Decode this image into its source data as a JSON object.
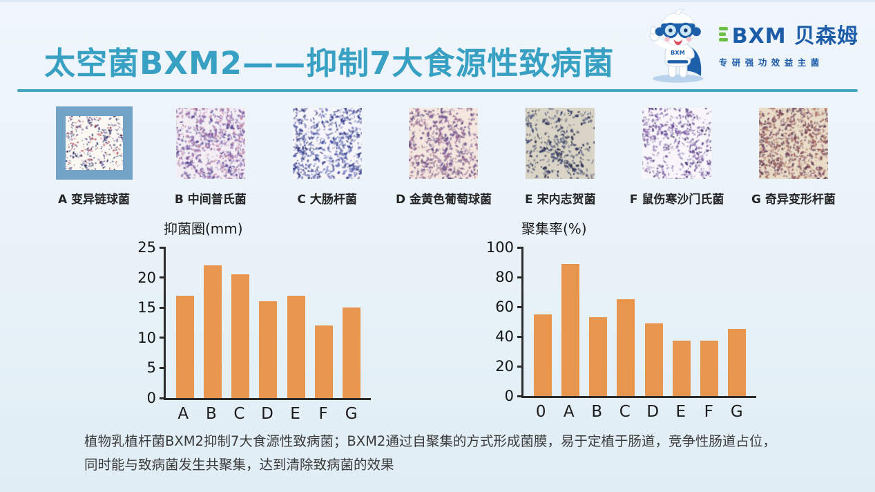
{
  "title": "太空菌BXM2——抑制7大食源性致病菌",
  "logo": {
    "brand": "BXM 贝森姆",
    "tagline": "专研强功效益主菌",
    "brand_color": "#1d5ca9",
    "accent_green": "#6cbf45"
  },
  "specimens": [
    {
      "label": "A 变异链球菌",
      "highlighted": true,
      "bg": "#faf8f3",
      "colors": [
        "#34386f",
        "#b04050",
        "#6a5a9e",
        "#2b2e5e"
      ],
      "density": 330
    },
    {
      "label": "B 中间普氏菌",
      "highlighted": false,
      "bg": "#f3edf4",
      "colors": [
        "#7a5aa0",
        "#9b7ab8",
        "#54468f",
        "#c088a5"
      ],
      "density": 720
    },
    {
      "label": "C 大肠杆菌",
      "highlighted": false,
      "bg": "#f6f5f9",
      "colors": [
        "#4a55a8",
        "#39418f",
        "#7a82c0",
        "#2e3575"
      ],
      "density": 640
    },
    {
      "label": "D 金黄色葡萄球菌",
      "highlighted": false,
      "bg": "#f4e7df",
      "colors": [
        "#7a5a98",
        "#93658e",
        "#5c4a80",
        "#a47a95"
      ],
      "density": 660
    },
    {
      "label": "E 宋内志贺菌",
      "highlighted": false,
      "bg": "#d9d4c5",
      "colors": [
        "#2e3560",
        "#474f80",
        "#23284a"
      ],
      "density": 380
    },
    {
      "label": "F 鼠伤寒沙门氏菌",
      "highlighted": false,
      "bg": "#f8f6fa",
      "colors": [
        "#6a4a98",
        "#8866ab",
        "#44356e",
        "#9a85b8"
      ],
      "density": 520
    },
    {
      "label": "G 奇异变形杆菌",
      "highlighted": false,
      "bg": "#e9dcc8",
      "colors": [
        "#9a5a58",
        "#7a4a68",
        "#b07a6a",
        "#5e3c56"
      ],
      "density": 760
    }
  ],
  "chart_data": [
    {
      "type": "bar",
      "title": "抑菌圈(mm)",
      "categories": [
        "A",
        "B",
        "C",
        "D",
        "E",
        "F",
        "G"
      ],
      "values": [
        17,
        22,
        20.5,
        16,
        17,
        12,
        15
      ],
      "xlabel": "",
      "ylabel": "抑菌圈(mm)",
      "ylim": [
        0,
        25
      ],
      "yticks": [
        0,
        5,
        10,
        15,
        20,
        25
      ],
      "grid": false,
      "bar_color": "#e8954d"
    },
    {
      "type": "bar",
      "title": "聚集率(%)",
      "categories": [
        "0",
        "A",
        "B",
        "C",
        "D",
        "E",
        "F",
        "G"
      ],
      "values": [
        55,
        89,
        53,
        65,
        49,
        37,
        37,
        45
      ],
      "xlabel": "",
      "ylabel": "聚集率(%)",
      "ylim": [
        0,
        100
      ],
      "yticks": [
        0,
        20,
        40,
        60,
        80,
        100
      ],
      "grid": false,
      "bar_color": "#e8954d"
    }
  ],
  "footer": {
    "line1": "植物乳植杆菌BXM2抑制7大食源性致病菌；BXM2通过自聚集的方式形成菌膜，易于定植于肠道，竞争性肠道占位，",
    "line2": "同时能与致病菌发生共聚集，达到清除致病菌的效果"
  },
  "colors": {
    "title_teal": "#38a0c3",
    "rule_teal": "#45a4c2",
    "bar_orange": "#e8954d",
    "highlight_frame": "#74a3c8",
    "axis": "#2b2b2b",
    "background": "#eaf3f9"
  }
}
